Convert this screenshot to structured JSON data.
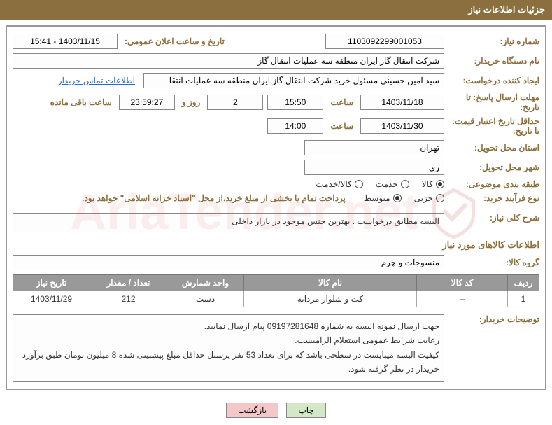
{
  "header": {
    "title": "جزئیات اطلاعات نیاز"
  },
  "fields": {
    "need_no_label": "شماره نیاز:",
    "need_no": "1103092299001053",
    "announce_label": "تاریخ و ساعت اعلان عمومی:",
    "announce_value": "1403/11/15 - 15:41",
    "buyer_label": "نام دستگاه خریدار:",
    "buyer_value": "شرکت انتقال گاز ایران منطقه سه عملیات انتقال گاز",
    "requester_label": "ایجاد کننده درخواست:",
    "requester_value": "سید امین حسینی مسئول خرید شرکت انتقال گاز ایران منطقه سه عملیات انتقا",
    "contact_link": "اطلاعات تماس خریدار",
    "deadline_reply_label": "مهلت ارسال پاسخ: تا تاریخ:",
    "deadline_reply_date": "1403/11/18",
    "time_label": "ساعت",
    "deadline_reply_time": "15:50",
    "day_label": "روز و",
    "days_left": "2",
    "countdown": "23:59:27",
    "remaining_label": "ساعت باقی مانده",
    "validity_label": "حداقل تاریخ اعتبار قیمت: تا تاریخ:",
    "validity_date": "1403/11/30",
    "validity_time": "14:00",
    "province_label": "استان محل تحویل:",
    "province": "تهران",
    "city_label": "شهر محل تحویل:",
    "city": "ری",
    "category_label": "طبقه بندی موضوعی:",
    "cat_goods": "کالا",
    "cat_service": "خدمت",
    "cat_goods_service": "کالا/خدمت",
    "process_label": "نوع فرآیند خرید:",
    "proc_minor": "جزیی",
    "proc_medium": "متوسط",
    "payment_note": "پرداخت تمام یا بخشی از مبلغ خرید،از محل \"اسناد خزانه اسلامی\" خواهد بود.",
    "summary_label": "شرح کلی نیاز:",
    "summary_text": "البسه مطابق درخواست . بهترین جنس موجود در بازار داخلی",
    "goods_info_title": "اطلاعات کالاهای مورد نیاز",
    "group_label": "گروه کالا:",
    "group_value": "منسوجات و چرم",
    "buyer_desc_label": "توضیحات خریدار:",
    "buyer_desc_text": "جهت ارسال نمونه البسه به شماره 09197281648 پیام ارسال نمایید.\nرعایت شرایط عمومی استعلام الزامیست.\nکیفیت البسه میبایست در سطحی باشد که برای تعداد 53 نفر پرسنل حداقل مبلغ پیشبینی شده 8 میلیون تومان طبق برآورد خریدار در نظر گرفته شود."
  },
  "table": {
    "columns": [
      "ردیف",
      "کد کالا",
      "نام کالا",
      "واحد شمارش",
      "تعداد / مقدار",
      "تاریخ نیاز"
    ],
    "widths": [
      "45px",
      "130px",
      "auto",
      "110px",
      "110px",
      "110px"
    ],
    "rows": [
      [
        "1",
        "--",
        "کت و شلوار مردانه",
        "دست",
        "212",
        "1403/11/29"
      ]
    ]
  },
  "buttons": {
    "print": "چاپ",
    "back": "بازگشت"
  },
  "colors": {
    "accent": "#8b6f3e",
    "header_bg": "#8b6f3e",
    "th_bg": "#999999",
    "border": "#888888"
  },
  "watermark": "AriaTender.net"
}
